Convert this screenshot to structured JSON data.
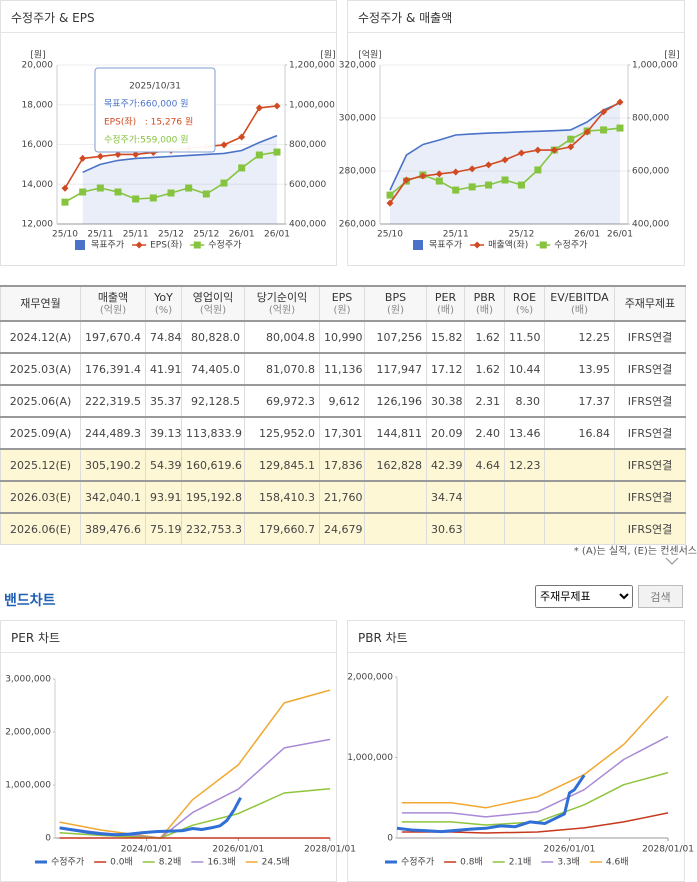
{
  "chart_data": [
    {
      "type": "line",
      "title": "수정주가 & EPS",
      "y_label": "[원]",
      "y2_label": "[원]",
      "categories": [
        "25/10",
        null,
        "25/11",
        null,
        "25/11",
        null,
        "25/12",
        null,
        "25/12",
        null,
        "26/01",
        null,
        "26/01"
      ],
      "ylim": [
        12000,
        20000
      ],
      "yticks": [
        {
          "value": 12000,
          "label": "12,000"
        },
        {
          "value": 14000,
          "label": "14,000"
        },
        {
          "value": 16000,
          "label": "16,000"
        },
        {
          "value": 18000,
          "label": "18,000"
        },
        {
          "value": 20000,
          "label": "20,000"
        }
      ],
      "y2lim": [
        400000,
        1200000
      ],
      "y2ticks": [
        {
          "value": 400000,
          "label": "400,000"
        },
        {
          "value": 600000,
          "label": "600,000"
        },
        {
          "value": 800000,
          "label": "800,000"
        },
        {
          "value": 1000000,
          "label": "1,000,000"
        },
        {
          "value": 1200000,
          "label": "1,200,000"
        }
      ],
      "grid": true,
      "series": [
        {
          "name": "목표주가",
          "color": "#4a72c9",
          "axis": "y2",
          "marker": "none",
          "area": true,
          "values": [
            null,
            660000,
            700000,
            720000,
            730000,
            735000,
            740000,
            745000,
            750000,
            755000,
            770000,
            810000,
            845000
          ]
        },
        {
          "name": "EPS(좌)",
          "color": "#d14a22",
          "marker": "diamond",
          "values": [
            13800,
            15300,
            15400,
            15500,
            15500,
            15600,
            15700,
            15800,
            15900,
            15980,
            16380,
            17840,
            17940
          ]
        },
        {
          "name": "수정주가",
          "color": "#86c440",
          "axis": "y2",
          "marker": "square",
          "values": [
            510000,
            561000,
            581000,
            561000,
            526000,
            531000,
            556000,
            581000,
            551000,
            606000,
            682000,
            747000,
            762000
          ]
        }
      ],
      "tooltip": {
        "title": "2025/10/31",
        "lines": [
          "목표주가:660,000 원",
          "EPS(좌)   : 15,276 원",
          "수정주가:559,000 원"
        ]
      }
    },
    {
      "type": "line",
      "title": "수정주가 & 매출액",
      "y_label": "[억원]",
      "y2_label": "[원]",
      "categories": [
        "25/10",
        null,
        null,
        null,
        "25/11",
        null,
        null,
        null,
        "25/12",
        null,
        null,
        null,
        "26/01",
        null,
        "26/01"
      ],
      "ylim": [
        260000,
        320000
      ],
      "yticks": [
        {
          "value": 260000,
          "label": "260,000"
        },
        {
          "value": 280000,
          "label": "280,000"
        },
        {
          "value": 300000,
          "label": "300,000"
        },
        {
          "value": 320000,
          "label": "320,000"
        }
      ],
      "y2lim": [
        400000,
        1000000
      ],
      "y2ticks": [
        {
          "value": 400000,
          "label": "400,000"
        },
        {
          "value": 600000,
          "label": "600,000"
        },
        {
          "value": 800000,
          "label": "800,000"
        },
        {
          "value": 1000000,
          "label": "1,000,000"
        }
      ],
      "grid": true,
      "series": [
        {
          "name": "목표주가",
          "color": "#4a72c9",
          "axis": "y2",
          "marker": "none",
          "area": true,
          "values": [
            528000,
            660000,
            700000,
            717000,
            736000,
            740000,
            743000,
            745000,
            748000,
            750000,
            752000,
            755000,
            785000,
            830000,
            857000
          ]
        },
        {
          "name": "매출액(좌)",
          "color": "#d14a22",
          "marker": "diamond",
          "values": [
            267900,
            276600,
            278100,
            278900,
            279600,
            280800,
            282300,
            284200,
            286800,
            287900,
            287900,
            289100,
            294700,
            302300,
            306000
          ]
        },
        {
          "name": "수정주가",
          "color": "#86c440",
          "axis": "y2",
          "marker": "square",
          "values": [
            509000,
            562000,
            585000,
            562000,
            528000,
            540000,
            547000,
            566000,
            547000,
            604000,
            679000,
            720000,
            751000,
            755000,
            762000
          ]
        }
      ]
    },
    {
      "type": "line",
      "title": "PER 차트",
      "xlim": [
        2022,
        2028
      ],
      "xticks": [
        {
          "value": 2024,
          "label": "2024/01/01"
        },
        {
          "value": 2026,
          "label": "2026/01/01"
        },
        {
          "value": 2028,
          "label": "2028/01/01"
        }
      ],
      "ylim": [
        0,
        3000000
      ],
      "yticks": [
        0,
        {
          "value": 1000000,
          "label": "1,000,000"
        },
        {
          "value": 2000000,
          "label": "2,000,000"
        },
        {
          "value": 3000000,
          "label": "3,000,000"
        }
      ],
      "grid": false,
      "series": [
        {
          "name": "수정주가",
          "color": "#2f6fd6",
          "width": 3,
          "x": [
            2022.1,
            2022.4,
            2022.7,
            2023.0,
            2023.3,
            2023.6,
            2023.9,
            2024.2,
            2024.5,
            2024.8,
            2025.0,
            2025.2,
            2025.4,
            2025.6,
            2025.75,
            2025.9,
            2026.05
          ],
          "values": [
            190000,
            150000,
            110000,
            80000,
            60000,
            70000,
            100000,
            120000,
            130000,
            140000,
            180000,
            160000,
            190000,
            230000,
            330000,
            520000,
            760000
          ]
        },
        {
          "name": "0.0배",
          "color": "#c8381e",
          "width": 1.5,
          "x": [
            2022.1,
            2023.0,
            2024.3,
            2025.0,
            2026.0,
            2027.0,
            2028.0
          ],
          "values": [
            0,
            0,
            0,
            0,
            0,
            0,
            0
          ]
        },
        {
          "name": "8.2배",
          "color": "#8fc43c",
          "width": 1.5,
          "x": [
            2022.1,
            2023.0,
            2024.3,
            2025.0,
            2026.0,
            2027.0,
            2028.0
          ],
          "values": [
            100000,
            50000,
            0,
            240000,
            460000,
            850000,
            930000
          ]
        },
        {
          "name": "16.3배",
          "color": "#a88ad6",
          "width": 1.5,
          "x": [
            2022.1,
            2023.0,
            2024.3,
            2025.0,
            2026.0,
            2027.0,
            2028.0
          ],
          "values": [
            200000,
            100000,
            0,
            480000,
            920000,
            1700000,
            1860000
          ]
        },
        {
          "name": "24.5배",
          "color": "#f0a830",
          "width": 1.5,
          "x": [
            2022.1,
            2023.0,
            2024.3,
            2025.0,
            2026.0,
            2027.0,
            2028.0
          ],
          "values": [
            300000,
            150000,
            0,
            720000,
            1380000,
            2550000,
            2790000
          ]
        }
      ]
    },
    {
      "type": "line",
      "title": "PBR 차트",
      "xlim": [
        2022.5,
        2028
      ],
      "xticks": [
        {
          "value": 2026,
          "label": "2026/01/01"
        },
        {
          "value": 2028,
          "label": "2028/01/01"
        }
      ],
      "ylim": [
        0,
        2000000
      ],
      "yticks": [
        0,
        {
          "value": 1000000,
          "label": "1,000,000"
        },
        {
          "value": 2000000,
          "label": "2,000,000"
        }
      ],
      "grid": false,
      "series": [
        {
          "name": "수정주가",
          "color": "#2f6fd6",
          "width": 3,
          "x": [
            2022.5,
            2022.8,
            2023.1,
            2023.4,
            2023.7,
            2024.0,
            2024.3,
            2024.6,
            2024.9,
            2025.2,
            2025.5,
            2025.7,
            2025.9,
            2026.0,
            2026.1,
            2026.3
          ],
          "values": [
            120000,
            100000,
            90000,
            80000,
            95000,
            110000,
            120000,
            150000,
            140000,
            200000,
            180000,
            240000,
            300000,
            560000,
            600000,
            780000
          ]
        },
        {
          "name": "0.8배",
          "color": "#c8381e",
          "width": 1.5,
          "x": [
            2022.6,
            2023.6,
            2024.3,
            2025.35,
            2026.3,
            2027.1,
            2028.0
          ],
          "values": [
            75000,
            75000,
            62000,
            75000,
            125000,
            200000,
            312000
          ]
        },
        {
          "name": "2.1배",
          "color": "#8fc43c",
          "width": 1.5,
          "x": [
            2022.6,
            2023.6,
            2024.3,
            2025.35,
            2026.3,
            2027.1,
            2028.0
          ],
          "values": [
            200000,
            200000,
            162000,
            200000,
            412000,
            662000,
            812000
          ]
        },
        {
          "name": "3.3배",
          "color": "#a88ad6",
          "width": 1.5,
          "x": [
            2022.6,
            2023.6,
            2024.3,
            2025.35,
            2026.3,
            2027.1,
            2028.0
          ],
          "values": [
            312000,
            312000,
            262000,
            325000,
            600000,
            975000,
            1262000
          ]
        },
        {
          "name": "4.6배",
          "color": "#f0a830",
          "width": 1.5,
          "x": [
            2022.6,
            2023.6,
            2024.3,
            2025.35,
            2026.3,
            2027.1,
            2028.0
          ],
          "values": [
            437000,
            437000,
            375000,
            512000,
            787000,
            1162000,
            1762000
          ]
        }
      ]
    }
  ],
  "table": {
    "header": [
      [
        "재무연월"
      ],
      [
        "매출액",
        "(억원)"
      ],
      [
        "YoY",
        "(%)"
      ],
      [
        "영업이익",
        "(억원)"
      ],
      [
        "당기순이익",
        "(억원)"
      ],
      [
        "EPS",
        "(원)"
      ],
      [
        "BPS",
        "(원)"
      ],
      [
        "PER",
        "(배)"
      ],
      [
        "PBR",
        "(배)"
      ],
      [
        "ROE",
        "(%)"
      ],
      [
        "EV/EBITDA",
        "(배)"
      ],
      [
        "주재무제표"
      ]
    ],
    "rows": [
      [
        "2024.12(A)",
        "197,670.4",
        "74.84",
        "80,828.0",
        "80,004.8",
        "10,990",
        "107,256",
        "15.82",
        "1.62",
        "11.50",
        "12.25",
        "IFRS연결"
      ],
      [
        "2025.03(A)",
        "176,391.4",
        "41.91",
        "74,405.0",
        "81,070.8",
        "11,136",
        "117,947",
        "17.12",
        "1.62",
        "10.44",
        "13.95",
        "IFRS연결"
      ],
      [
        "2025.06(A)",
        "222,319.5",
        "35.37",
        "92,128.5",
        "69,972.3",
        "9,612",
        "126,196",
        "30.38",
        "2.31",
        "8.30",
        "17.37",
        "IFRS연결"
      ],
      [
        "2025.09(A)",
        "244,489.3",
        "39.13",
        "113,833.9",
        "125,952.0",
        "17,301",
        "144,811",
        "20.09",
        "2.40",
        "13.46",
        "16.84",
        "IFRS연결"
      ],
      [
        "2025.12(E)",
        "305,190.2",
        "54.39",
        "160,619.6",
        "129,845.1",
        "17,836",
        "162,828",
        "42.39",
        "4.64",
        "12.23",
        null,
        "IFRS연결"
      ],
      [
        "2026.03(E)",
        "342,040.1",
        "93.91",
        "195,192.8",
        "158,410.3",
        "21,760",
        null,
        "34.74",
        null,
        null,
        null,
        "IFRS연결"
      ],
      [
        "2026.06(E)",
        "389,476.6",
        "75.19",
        "232,753.3",
        "179,660.7",
        "24,679",
        null,
        "30.63",
        null,
        null,
        null,
        "IFRS연결"
      ]
    ],
    "estimate_rows": [
      4,
      5,
      6
    ],
    "footnote": "* (A)는 실적, (E)는 컨센서스"
  },
  "band": {
    "title": "밴드차트",
    "select": "주재무제표",
    "button": "검색"
  }
}
